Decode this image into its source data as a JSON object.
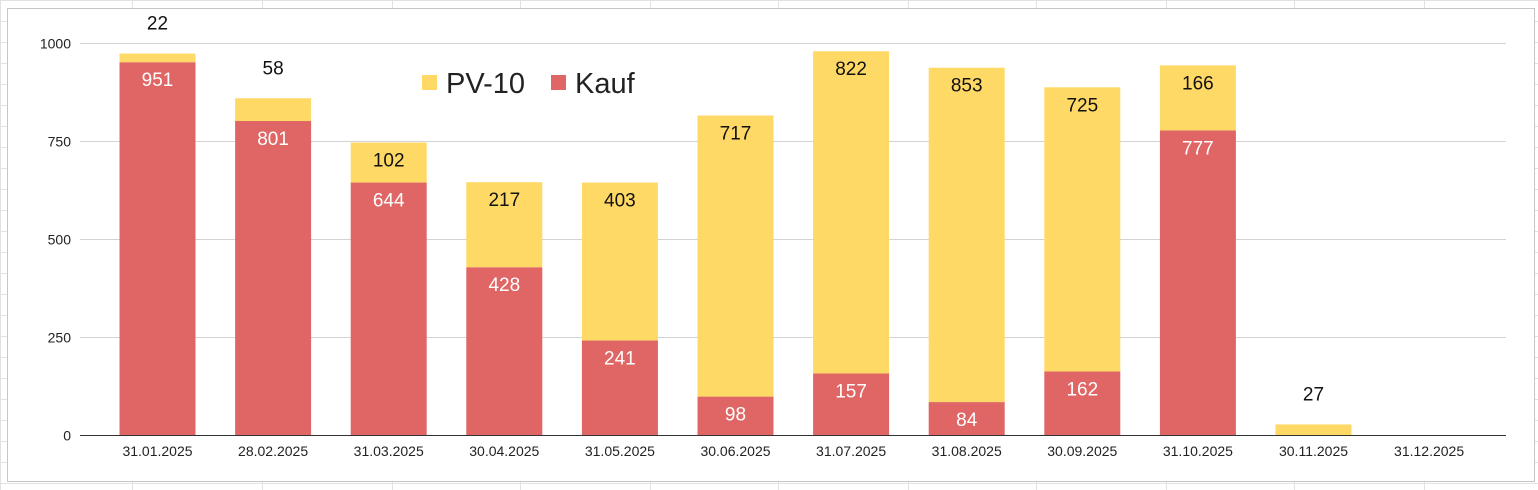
{
  "chart_data": {
    "type": "bar",
    "stacked": true,
    "categories": [
      "31.01.2025",
      "28.02.2025",
      "31.03.2025",
      "30.04.2025",
      "31.05.2025",
      "30.06.2025",
      "31.07.2025",
      "31.08.2025",
      "30.09.2025",
      "31.10.2025",
      "30.11.2025",
      "31.12.2025"
    ],
    "series": [
      {
        "name": "Kauf",
        "color": "#e06666",
        "values": [
          951,
          801,
          644,
          428,
          241,
          98,
          157,
          84,
          162,
          777,
          0,
          0
        ]
      },
      {
        "name": "PV-10",
        "color": "#ffd966",
        "values": [
          22,
          58,
          102,
          217,
          403,
          717,
          822,
          853,
          725,
          166,
          27,
          0
        ]
      }
    ],
    "legend_order": [
      "PV-10",
      "Kauf"
    ],
    "legend_position": "top",
    "yticks": [
      "0",
      "250",
      "500",
      "750",
      "1000"
    ],
    "ylim": [
      0,
      1000
    ],
    "grid": true,
    "title": "",
    "xlabel": "",
    "ylabel": ""
  }
}
